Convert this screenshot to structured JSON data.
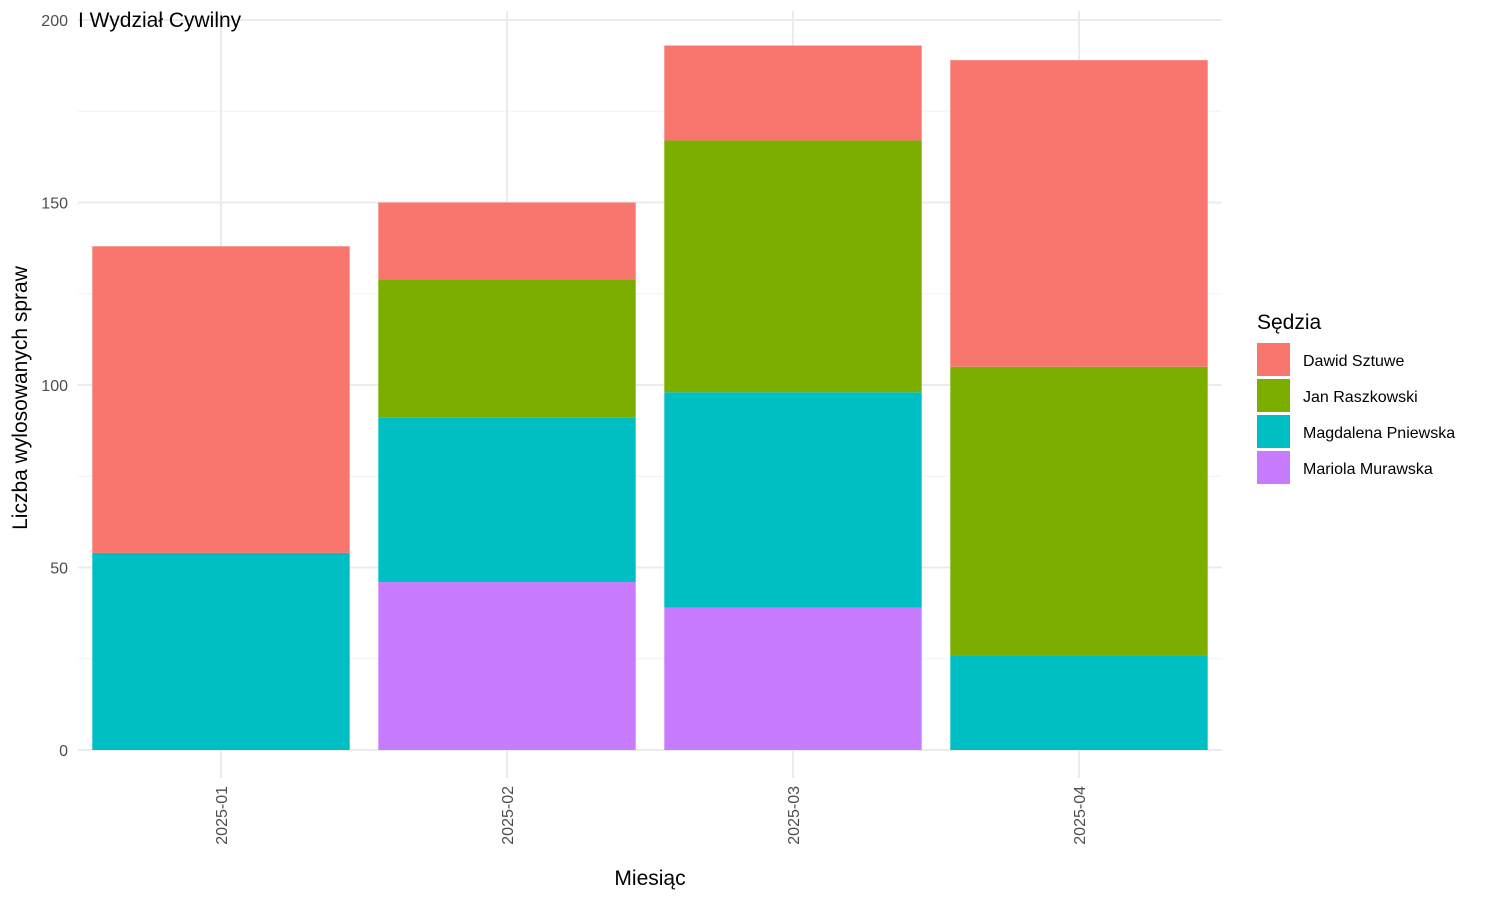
{
  "chart_data": {
    "type": "bar",
    "stacked": true,
    "title": "I Wydział Cywilny",
    "xlabel": "Miesiąc",
    "ylabel": "Liczba wylosowanych spraw",
    "ylim": [
      0,
      200
    ],
    "yticks": [
      0,
      50,
      100,
      150,
      200
    ],
    "categories": [
      "2025-01",
      "2025-02",
      "2025-03",
      "2025-04"
    ],
    "legend": {
      "title": "Sędzia",
      "position": "right"
    },
    "grid": true,
    "stack_order_bottom_to_top": [
      "Mariola Murawska",
      "Magdalena Pniewska",
      "Jan Raszkowski",
      "Dawid Sztuwe"
    ],
    "series": [
      {
        "name": "Dawid Sztuwe",
        "color": "#F8766D",
        "values": [
          84,
          21,
          26,
          84
        ]
      },
      {
        "name": "Jan Raszkowski",
        "color": "#7CAE00",
        "values": [
          0,
          38,
          69,
          79
        ]
      },
      {
        "name": "Magdalena Pniewska",
        "color": "#00BFC4",
        "values": [
          54,
          45,
          59,
          26
        ]
      },
      {
        "name": "Mariola Murawska",
        "color": "#C77CFF",
        "values": [
          0,
          46,
          39,
          0
        ]
      }
    ]
  }
}
